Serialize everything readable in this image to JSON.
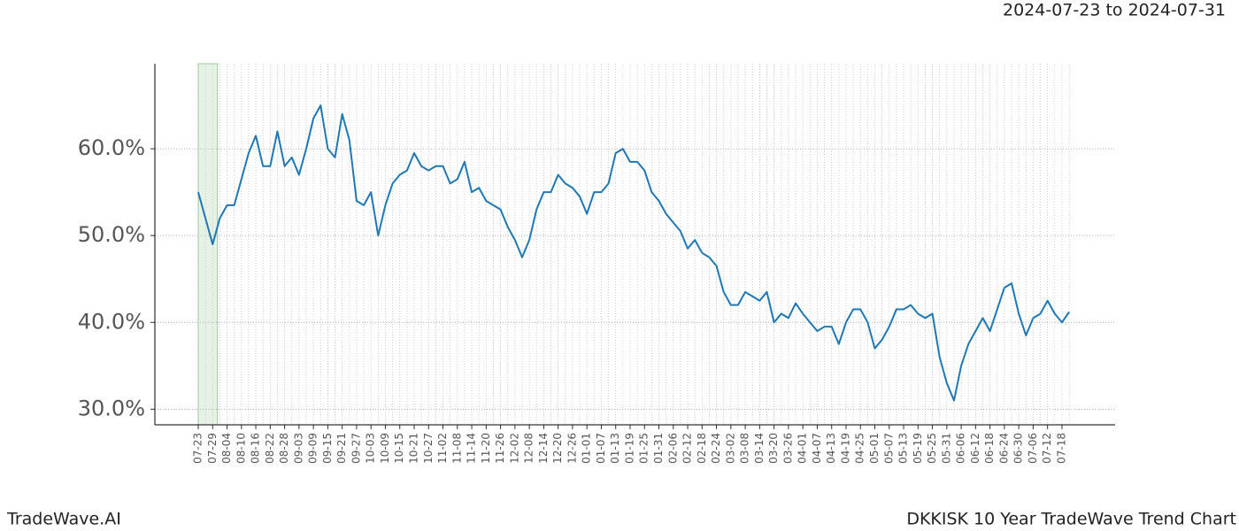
{
  "header": {
    "date_range": "2024-07-23 to 2024-07-31"
  },
  "footer": {
    "brand": "TradeWave.AI",
    "chart_name": "DKKISK 10 Year TradeWave Trend Chart"
  },
  "chart_data": {
    "type": "line",
    "categories": [
      "07-23",
      null,
      "07-29",
      null,
      "08-04",
      null,
      "08-10",
      null,
      "08-16",
      null,
      "08-22",
      null,
      "08-28",
      null,
      "09-03",
      null,
      "09-09",
      null,
      "09-15",
      null,
      "09-21",
      null,
      "09-27",
      null,
      "10-03",
      null,
      "10-09",
      null,
      "10-15",
      null,
      "10-21",
      null,
      "10-27",
      null,
      "11-02",
      null,
      "11-08",
      null,
      "11-14",
      null,
      "11-20",
      null,
      "11-26",
      null,
      "12-02",
      null,
      "12-08",
      null,
      "12-14",
      null,
      "12-20",
      null,
      "12-26",
      null,
      "01-01",
      null,
      "01-07",
      null,
      "01-13",
      null,
      "01-19",
      null,
      "01-25",
      null,
      "01-31",
      null,
      "02-06",
      null,
      "02-12",
      null,
      "02-18",
      null,
      "02-24",
      null,
      "03-02",
      null,
      "03-08",
      null,
      "03-14",
      null,
      "03-20",
      null,
      "03-26",
      null,
      "04-01",
      null,
      "04-07",
      null,
      "04-13",
      null,
      "04-19",
      null,
      "04-25",
      null,
      "05-01",
      null,
      "05-07",
      null,
      "05-13",
      null,
      "05-19",
      null,
      "05-25",
      null,
      "05-31",
      null,
      "06-06",
      null,
      "06-12",
      null,
      "06-18",
      null,
      "06-24",
      null,
      "06-30",
      null,
      "07-06",
      null,
      "07-12",
      null,
      "07-18",
      null
    ],
    "series": [
      {
        "color": "#1f77b4",
        "values": [
          55,
          52,
          49,
          52,
          53.5,
          53.5,
          56.5,
          59.5,
          61.5,
          58,
          58,
          62,
          58,
          59,
          57,
          60,
          63.5,
          65,
          60,
          59,
          64,
          61,
          54,
          53.5,
          55,
          50,
          53.5,
          56,
          57,
          57.5,
          59.5,
          58,
          57.5,
          58,
          58,
          56,
          56.5,
          58.5,
          55,
          55.5,
          54,
          53.5,
          53,
          51,
          49.5,
          47.5,
          49.5,
          53,
          55,
          55,
          57,
          56,
          55.5,
          54.5,
          52.5,
          55,
          55,
          56,
          59.5,
          60,
          58.5,
          58.5,
          57.5,
          55,
          54,
          52.5,
          51.5,
          50.5,
          48.5,
          49.5,
          48,
          47.5,
          46.5,
          43.5,
          42,
          42,
          43.5,
          43,
          42.5,
          43.5,
          40,
          41,
          40.5,
          42.2,
          41,
          40,
          39,
          39.5,
          39.5,
          37.5,
          40,
          41.5,
          41.5,
          40,
          37,
          38,
          39.5,
          41.5,
          41.5,
          42,
          41,
          40.5,
          41,
          36,
          33,
          31,
          35,
          37.5,
          39,
          40.5,
          39,
          41.5,
          44,
          44.5,
          41,
          38.5,
          40.5,
          41,
          42.5,
          41,
          40,
          41.2
        ]
      }
    ],
    "ylim": [
      28.2,
      69.8
    ],
    "yticks": [
      {
        "value": 30,
        "label": "30.0%"
      },
      {
        "value": 40,
        "label": "40.0%"
      },
      {
        "value": 50,
        "label": "50.0%"
      },
      {
        "value": 60,
        "label": "60.0%"
      }
    ],
    "grid": true,
    "highlight": [
      "2024-07-23",
      "2024-07-31"
    ],
    "highlight_color": "#e6f2e6"
  }
}
